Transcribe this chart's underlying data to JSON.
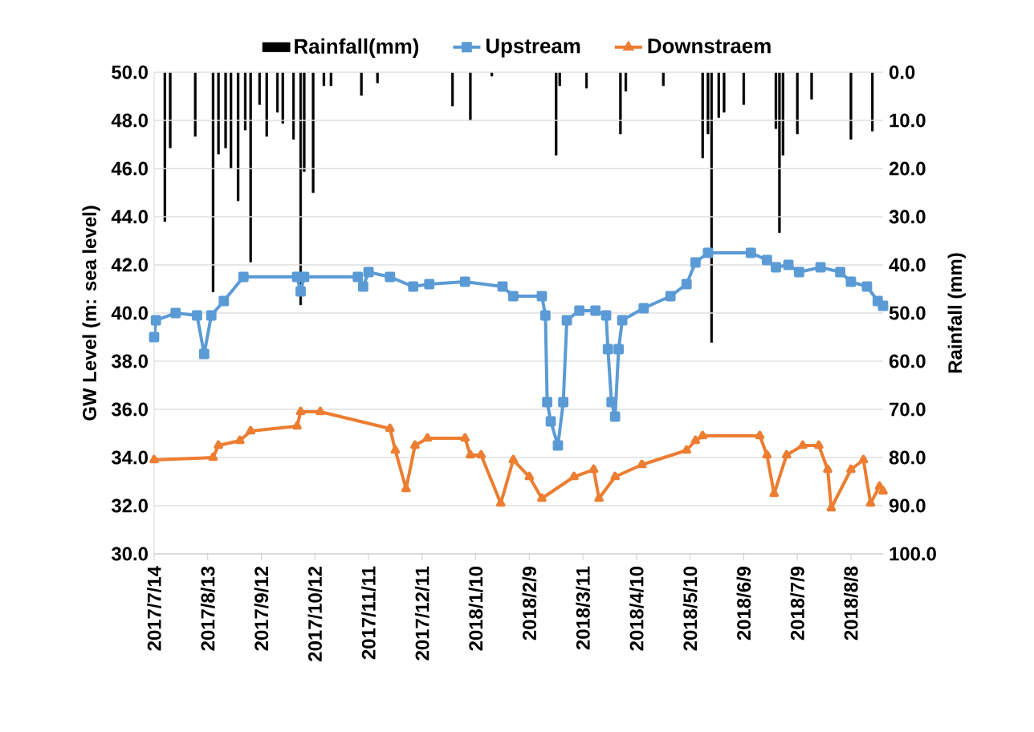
{
  "chart_data": {
    "type": "line",
    "ylabel": "GW Level (m: sea level)",
    "y2label": "Rainfall (mm)",
    "xlim": [
      "2017-07-14",
      "2018-08-26"
    ],
    "xticks": [
      {
        "value": "2017-07-14",
        "label": "2017/7/14"
      },
      {
        "value": "2017-08-13",
        "label": "2017/8/13"
      },
      {
        "value": "2017-09-12",
        "label": "2017/9/12"
      },
      {
        "value": "2017-10-12",
        "label": "2017/10/12"
      },
      {
        "value": "2017-11-11",
        "label": "2017/11/11"
      },
      {
        "value": "2017-12-11",
        "label": "2017/12/11"
      },
      {
        "value": "2018-01-10",
        "label": "2018/1/10"
      },
      {
        "value": "2018-02-09",
        "label": "2018/2/9"
      },
      {
        "value": "2018-03-11",
        "label": "2018/3/11"
      },
      {
        "value": "2018-04-10",
        "label": "2018/4/10"
      },
      {
        "value": "2018-05-10",
        "label": "2018/5/10"
      },
      {
        "value": "2018-06-09",
        "label": "2018/6/9"
      },
      {
        "value": "2018-07-09",
        "label": "2018/7/9"
      },
      {
        "value": "2018-08-08",
        "label": "2018/8/8"
      }
    ],
    "ylim": [
      30,
      50
    ],
    "yticks": [
      {
        "value": 30,
        "label": "30.0"
      },
      {
        "value": 32,
        "label": "32.0"
      },
      {
        "value": 34,
        "label": "34.0"
      },
      {
        "value": 36,
        "label": "36.0"
      },
      {
        "value": 38,
        "label": "38.0"
      },
      {
        "value": 40,
        "label": "40.0"
      },
      {
        "value": 42,
        "label": "42.0"
      },
      {
        "value": 44,
        "label": "44.0"
      },
      {
        "value": 46,
        "label": "46.0"
      },
      {
        "value": 48,
        "label": "48.0"
      },
      {
        "value": 50,
        "label": "50.0"
      }
    ],
    "y2lim": [
      100,
      0
    ],
    "y2ticks": [
      {
        "value": 0,
        "label": "0.0"
      },
      {
        "value": 10,
        "label": "10.0"
      },
      {
        "value": 20,
        "label": "20.0"
      },
      {
        "value": 30,
        "label": "30.0"
      },
      {
        "value": 40,
        "label": "40.0"
      },
      {
        "value": 50,
        "label": "50.0"
      },
      {
        "value": 60,
        "label": "60.0"
      },
      {
        "value": 70,
        "label": "70.0"
      },
      {
        "value": 80,
        "label": "80.0"
      },
      {
        "value": 90,
        "label": "90.0"
      },
      {
        "value": 100,
        "label": "100.0"
      }
    ],
    "grid": "y",
    "legend": "top",
    "series": [
      {
        "name": "Rainfall(mm)",
        "type": "bar",
        "axis": "y2",
        "color": "#000000",
        "x": [
          "2017-07-20",
          "2017-07-23",
          "2017-08-06",
          "2017-08-16",
          "2017-08-19",
          "2017-08-23",
          "2017-08-26",
          "2017-08-30",
          "2017-09-03",
          "2017-09-06",
          "2017-09-11",
          "2017-09-15",
          "2017-09-21",
          "2017-09-24",
          "2017-09-30",
          "2017-10-04",
          "2017-10-06",
          "2017-10-11",
          "2017-10-17",
          "2017-10-21",
          "2017-11-07",
          "2017-11-16",
          "2017-12-28",
          "2018-01-07",
          "2018-01-19",
          "2018-02-24",
          "2018-02-26",
          "2018-03-13",
          "2018-04-01",
          "2018-04-04",
          "2018-04-25",
          "2018-05-17",
          "2018-05-20",
          "2018-05-22",
          "2018-05-26",
          "2018-05-29",
          "2018-06-09",
          "2018-06-27",
          "2018-06-29",
          "2018-07-01",
          "2018-07-09",
          "2018-07-17",
          "2018-08-08",
          "2018-08-20"
        ],
        "values": [
          31,
          15.7,
          13.3,
          45.6,
          17,
          15.7,
          20,
          26.7,
          12,
          39.4,
          6.7,
          13.3,
          8.3,
          10.6,
          13.9,
          48.3,
          20.6,
          25,
          2.8,
          2.8,
          4.8,
          2.2,
          7,
          10,
          0.8,
          17.2,
          2.8,
          3.3,
          12.8,
          3.9,
          2.8,
          17.8,
          12.8,
          56.1,
          9.4,
          8.3,
          6.7,
          11.7,
          33.3,
          17.2,
          12.8,
          5.6,
          13.9,
          12.2
        ]
      },
      {
        "name": "Upstream",
        "marker": "square",
        "color": "#5b9bd5",
        "x": [
          "2017-07-14",
          "2017-07-15",
          "2017-07-26",
          "2017-08-07",
          "2017-08-11",
          "2017-08-15",
          "2017-08-22",
          "2017-09-02",
          "2017-10-02",
          "2017-10-04",
          "2017-10-06",
          "2017-11-05",
          "2017-11-08",
          "2017-11-11",
          "2017-11-23",
          "2017-12-06",
          "2017-12-15",
          "2018-01-04",
          "2018-01-25",
          "2018-01-31",
          "2018-02-16",
          "2018-02-18",
          "2018-02-19",
          "2018-02-21",
          "2018-02-25",
          "2018-02-28",
          "2018-03-02",
          "2018-03-09",
          "2018-03-18",
          "2018-03-24",
          "2018-03-25",
          "2018-03-27",
          "2018-03-29",
          "2018-03-31",
          "2018-04-02",
          "2018-04-14",
          "2018-04-29",
          "2018-05-08",
          "2018-05-13",
          "2018-05-20",
          "2018-06-13",
          "2018-06-22",
          "2018-06-27",
          "2018-07-04",
          "2018-07-10",
          "2018-07-22",
          "2018-08-02",
          "2018-08-08",
          "2018-08-17",
          "2018-08-23",
          "2018-08-26"
        ],
        "values": [
          39.0,
          39.7,
          40.0,
          39.9,
          38.3,
          39.9,
          40.5,
          41.5,
          41.5,
          40.9,
          41.5,
          41.5,
          41.1,
          41.7,
          41.5,
          41.1,
          41.2,
          41.3,
          41.1,
          40.7,
          40.7,
          39.9,
          36.3,
          35.5,
          34.5,
          36.3,
          39.7,
          40.1,
          40.1,
          39.9,
          38.5,
          36.3,
          35.7,
          38.5,
          39.7,
          40.2,
          40.7,
          41.2,
          42.1,
          42.5,
          42.5,
          42.2,
          41.9,
          42.0,
          41.7,
          41.9,
          41.7,
          41.3,
          41.1,
          40.5,
          40.3
        ]
      },
      {
        "name": "Downstraem",
        "marker": "triangle",
        "color": "#ed7d31",
        "x": [
          "2017-07-14",
          "2017-08-16",
          "2017-08-19",
          "2017-08-31",
          "2017-09-06",
          "2017-10-02",
          "2017-10-04",
          "2017-10-15",
          "2017-11-23",
          "2017-11-26",
          "2017-12-02",
          "2017-12-07",
          "2017-12-14",
          "2018-01-04",
          "2018-01-07",
          "2018-01-13",
          "2018-01-24",
          "2018-01-31",
          "2018-02-09",
          "2018-02-16",
          "2018-03-06",
          "2018-03-17",
          "2018-03-20",
          "2018-03-29",
          "2018-04-13",
          "2018-05-08",
          "2018-05-13",
          "2018-05-17",
          "2018-06-18",
          "2018-06-22",
          "2018-06-26",
          "2018-07-03",
          "2018-07-12",
          "2018-07-21",
          "2018-07-26",
          "2018-07-28",
          "2018-08-08",
          "2018-08-15",
          "2018-08-19",
          "2018-08-24",
          "2018-08-26"
        ],
        "values": [
          33.9,
          34.0,
          34.5,
          34.7,
          35.1,
          35.3,
          35.9,
          35.9,
          35.2,
          34.3,
          32.7,
          34.5,
          34.8,
          34.8,
          34.1,
          34.1,
          32.1,
          33.9,
          33.2,
          32.3,
          33.2,
          33.5,
          32.3,
          33.2,
          33.7,
          34.3,
          34.7,
          34.9,
          34.9,
          34.1,
          32.5,
          34.1,
          34.5,
          34.5,
          33.5,
          31.9,
          33.5,
          33.9,
          32.1,
          32.8,
          32.6
        ]
      }
    ]
  }
}
